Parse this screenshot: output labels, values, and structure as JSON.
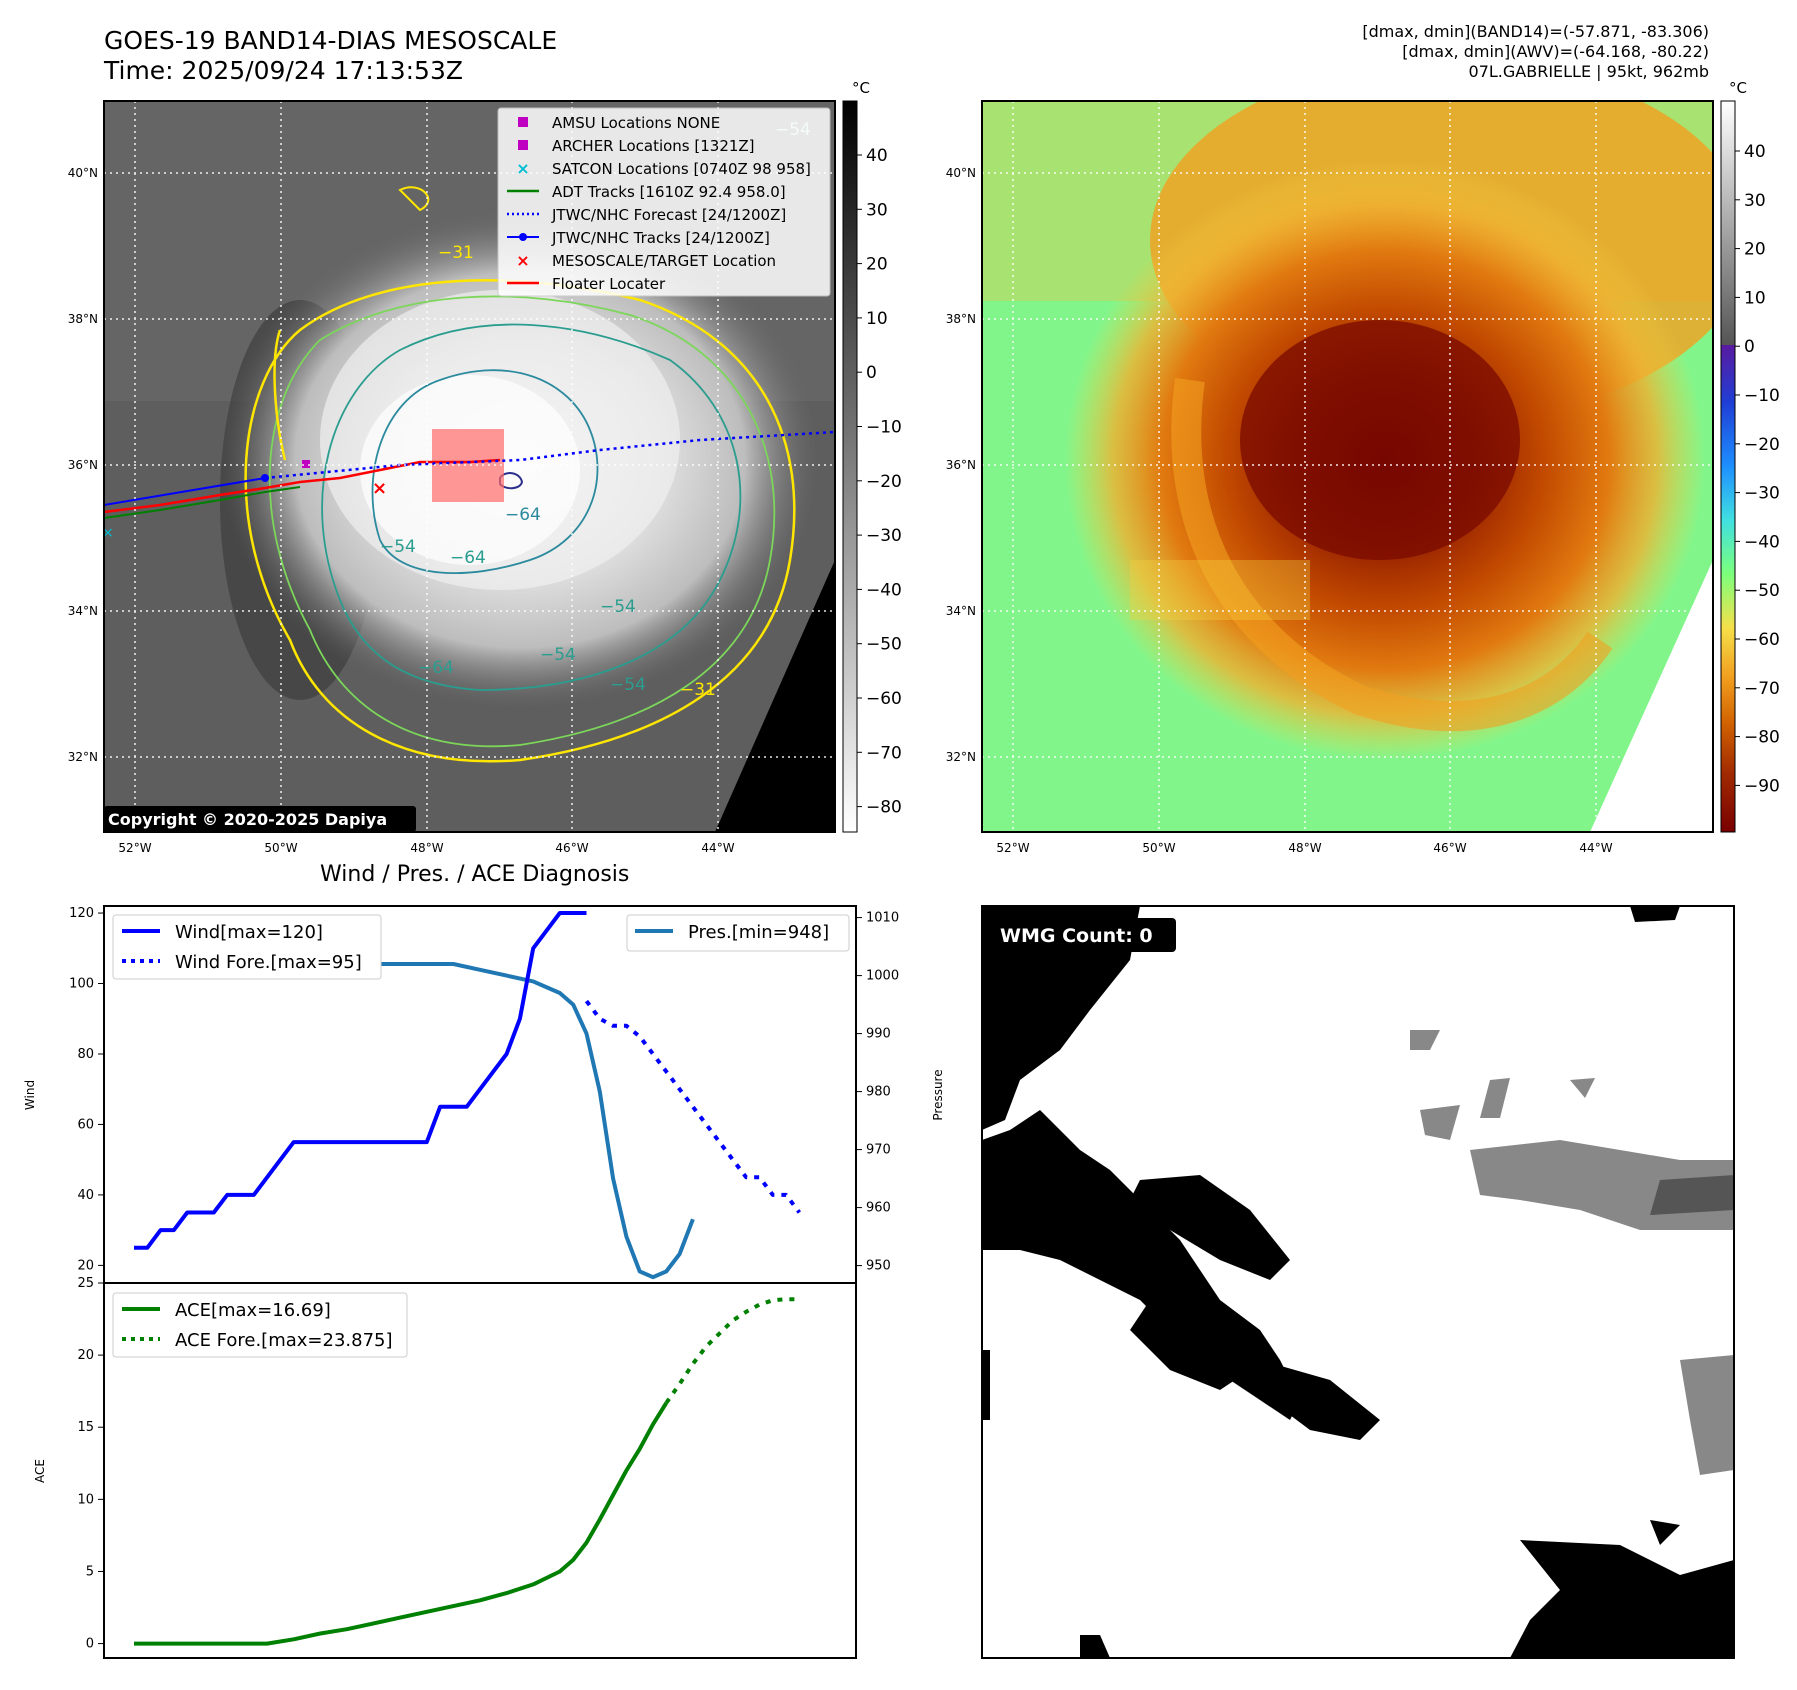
{
  "header": {
    "title": "GOES-19 BAND14-DIAS MESOSCALE",
    "time": "Time: 2025/09/24 17:13:53Z",
    "info_line1": "[dmax, dmin](BAND14)=(-57.871, -83.306)",
    "info_line2": "[dmax, dmin](AWV)=(-64.168, -80.22)",
    "info_line3": "07L.GABRIELLE | 95kt, 962mb"
  },
  "diagnosis_title": "Wind / Pres. / ACE Diagnosis",
  "copyright": "Copyright © 2020-2025 Dapiya",
  "wmg_label": "WMG Count: 0",
  "colors": {
    "wind": "#0000ff",
    "pressure": "#1f77b4",
    "ace": "#008000",
    "track_red": "#ff0000",
    "adt": "#008000",
    "contour_yellow": "#ffe600",
    "contour_lightgreen": "#7cd65a",
    "contour_teal": "#2a9d8f",
    "contour_navy": "#2b2f8a"
  },
  "map_common": {
    "lon_ticks": [
      "52°W",
      "50°W",
      "48°W",
      "46°W",
      "44°W"
    ],
    "lat_ticks": [
      "40°N",
      "38°N",
      "36°N",
      "34°N",
      "32°N"
    ],
    "unit": "°C"
  },
  "colorbar_gray": {
    "ticks": [
      "40",
      "30",
      "20",
      "10",
      "0",
      "−10",
      "−20",
      "−30",
      "−40",
      "−50",
      "−60",
      "−70",
      "−80"
    ]
  },
  "colorbar_color": {
    "ticks": [
      "40",
      "30",
      "20",
      "10",
      "0",
      "−10",
      "−20",
      "−30",
      "−40",
      "−50",
      "−60",
      "−70",
      "−80",
      "−90"
    ]
  },
  "legend_map": [
    {
      "label": "AMSU Locations NONE",
      "marker": "square",
      "color": "#c000c0"
    },
    {
      "label": "ARCHER Locations [1321Z]",
      "marker": "square",
      "color": "#c000c0"
    },
    {
      "label": "SATCON Locations [0740Z 98 958]",
      "marker": "x",
      "color": "#00bcd4"
    },
    {
      "label": "ADT Tracks [1610Z 92.4 958.0]",
      "marker": "line",
      "color": "#008000"
    },
    {
      "label": "JTWC/NHC Forecast [24/1200Z]",
      "marker": "dotted",
      "color": "#0000ff"
    },
    {
      "label": "JTWC/NHC Tracks [24/1200Z]",
      "marker": "line-dot",
      "color": "#0000ff"
    },
    {
      "label": "MESOSCALE/TARGET Location",
      "marker": "x",
      "color": "#ff0000"
    },
    {
      "label": "Floater Locater",
      "marker": "line",
      "color": "#ff0000"
    }
  ],
  "contour_labels": [
    "−54",
    "−64",
    "−64",
    "−54",
    "−64",
    "−54",
    "−54",
    "−31",
    "−31",
    "−54"
  ],
  "chart_data": [
    {
      "type": "line",
      "title": "Wind / Pres. / ACE Diagnosis",
      "ylabel": "Wind",
      "ylim": [
        15,
        122
      ],
      "y_ticks": [
        20,
        40,
        60,
        80,
        100,
        120
      ],
      "series": [
        {
          "name": "Wind[max=120]",
          "style": "solid",
          "x": [
            0,
            1,
            2,
            3,
            4,
            5,
            6,
            7,
            8,
            9,
            10,
            11,
            12,
            13,
            14,
            15,
            16,
            17,
            18,
            19,
            20,
            21,
            22,
            23,
            24,
            25,
            26,
            27,
            28,
            29,
            30,
            31,
            32,
            33,
            34
          ],
          "values": [
            25,
            25,
            30,
            30,
            35,
            35,
            35,
            40,
            40,
            40,
            45,
            50,
            55,
            55,
            55,
            55,
            55,
            55,
            55,
            55,
            55,
            55,
            55,
            65,
            65,
            65,
            70,
            75,
            80,
            90,
            110,
            115,
            120,
            120,
            120
          ]
        },
        {
          "name": "Wind Fore.[max=95]",
          "style": "dotted",
          "x": [
            34,
            35,
            36,
            37,
            38,
            39,
            40,
            41,
            42,
            43,
            44,
            45,
            46,
            47,
            48,
            49,
            50
          ],
          "values": [
            95,
            90,
            88,
            88,
            85,
            80,
            75,
            70,
            65,
            60,
            55,
            50,
            45,
            45,
            40,
            40,
            35
          ]
        }
      ],
      "y2label": "Pressure",
      "y2lim": [
        947,
        1012
      ],
      "y2_ticks": [
        950,
        960,
        970,
        980,
        990,
        1000,
        1010
      ],
      "pressure_series": {
        "name": "Pres.[min=948]",
        "x": [
          0,
          2,
          4,
          6,
          8,
          10,
          12,
          14,
          16,
          18,
          20,
          22,
          24,
          26,
          28,
          30,
          32,
          33,
          34,
          35,
          36,
          37,
          38,
          39,
          40,
          41,
          42
        ],
        "values": [
          1010,
          1010,
          1008,
          1006,
          1005,
          1004,
          1003,
          1003,
          1002,
          1002,
          1002,
          1002,
          1002,
          1001,
          1000,
          999,
          997,
          995,
          990,
          980,
          965,
          955,
          949,
          948,
          949,
          952,
          958
        ]
      }
    },
    {
      "type": "line",
      "ylabel": "ACE",
      "ylim": [
        -1,
        25
      ],
      "y_ticks": [
        0,
        5,
        10,
        15,
        20,
        25
      ],
      "series": [
        {
          "name": "ACE[max=16.69]",
          "style": "solid",
          "x": [
            0,
            2,
            4,
            6,
            8,
            10,
            12,
            14,
            16,
            18,
            20,
            22,
            24,
            26,
            28,
            30,
            32,
            33,
            34,
            35,
            36,
            37,
            38,
            39,
            40
          ],
          "values": [
            0,
            0,
            0,
            0,
            0,
            0,
            0.3,
            0.7,
            1.0,
            1.4,
            1.8,
            2.2,
            2.6,
            3.0,
            3.5,
            4.1,
            5.0,
            5.8,
            7.0,
            8.6,
            10.3,
            12.0,
            13.5,
            15.2,
            16.69
          ]
        },
        {
          "name": "ACE Fore.[max=23.875]",
          "style": "dotted",
          "x": [
            40,
            41,
            42,
            43,
            44,
            45,
            46,
            47,
            48,
            49,
            50
          ],
          "values": [
            16.69,
            18.0,
            19.4,
            20.6,
            21.5,
            22.4,
            23.0,
            23.5,
            23.8,
            23.875,
            23.875
          ]
        }
      ]
    }
  ]
}
